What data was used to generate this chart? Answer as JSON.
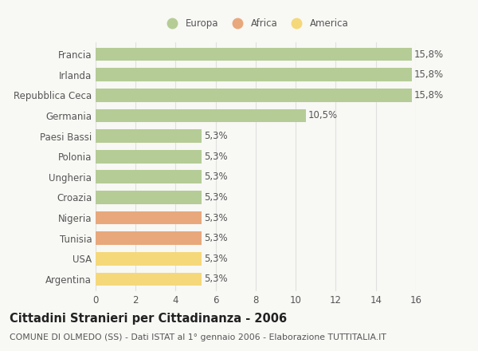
{
  "categories": [
    "Francia",
    "Irlanda",
    "Repubblica Ceca",
    "Germania",
    "Paesi Bassi",
    "Polonia",
    "Ungheria",
    "Croazia",
    "Nigeria",
    "Tunisia",
    "USA",
    "Argentina"
  ],
  "values": [
    15.8,
    15.8,
    15.8,
    10.5,
    5.3,
    5.3,
    5.3,
    5.3,
    5.3,
    5.3,
    5.3,
    5.3
  ],
  "labels": [
    "15,8%",
    "15,8%",
    "15,8%",
    "10,5%",
    "5,3%",
    "5,3%",
    "5,3%",
    "5,3%",
    "5,3%",
    "5,3%",
    "5,3%",
    "5,3%"
  ],
  "bar_colors": [
    "#b5cc96",
    "#b5cc96",
    "#b5cc96",
    "#b5cc96",
    "#b5cc96",
    "#b5cc96",
    "#b5cc96",
    "#b5cc96",
    "#e8a87c",
    "#e8a87c",
    "#f5d87a",
    "#f5d87a"
  ],
  "legend_labels": [
    "Europa",
    "Africa",
    "America"
  ],
  "legend_colors": [
    "#b5cc96",
    "#e8a87c",
    "#f5d87a"
  ],
  "title": "Cittadini Stranieri per Cittadinanza - 2006",
  "subtitle": "COMUNE DI OLMEDO (SS) - Dati ISTAT al 1° gennaio 2006 - Elaborazione TUTTITALIA.IT",
  "xlim": [
    0,
    16
  ],
  "xticks": [
    0,
    2,
    4,
    6,
    8,
    10,
    12,
    14,
    16
  ],
  "background_color": "#f8f8f5",
  "grid_color": "#e0e0e0",
  "bar_height": 0.65,
  "label_fontsize": 8.5,
  "ytick_fontsize": 8.5,
  "xtick_fontsize": 8.5,
  "title_fontsize": 10.5,
  "subtitle_fontsize": 7.8,
  "text_color": "#555555",
  "title_color": "#222222"
}
